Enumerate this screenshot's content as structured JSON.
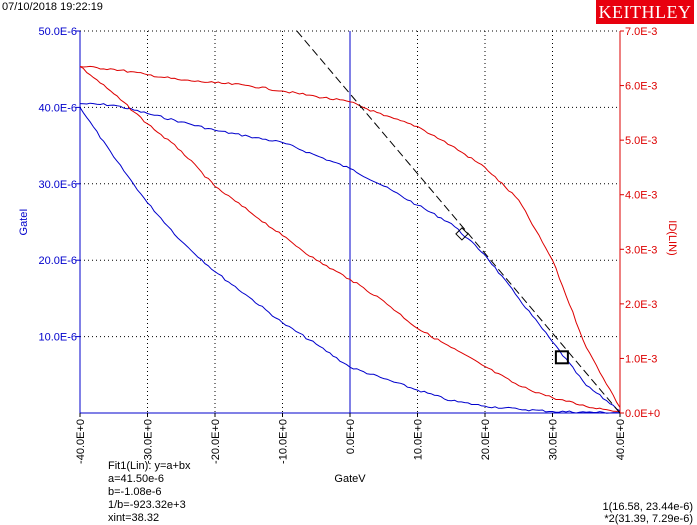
{
  "header": {
    "timestamp": "07/10/2018 19:22:19",
    "brand": "KEITHLEY"
  },
  "colors": {
    "left_axis": "#0000cc",
    "right_axis": "#dd0000",
    "fit_line": "#000000"
  },
  "fit": {
    "title": "Fit1(Lin):  y=a+bx",
    "a": "a=41.50e-6",
    "b": "b=-1.08e-6",
    "inv_b": "1/b=-923.32e+3",
    "xint": "xint=38.32"
  },
  "cursors": {
    "c1": "1(16.58, 23.44e-6)",
    "c2": "*2(31.39, 7.29e-6)"
  },
  "chart_data": {
    "type": "line",
    "xlabel": "GateV",
    "ylabel": "GateI",
    "y2label": "ID(LIN)",
    "xlim": [
      -40,
      40
    ],
    "ylim": [
      0,
      5e-05
    ],
    "y2lim": [
      0,
      0.007
    ],
    "grid": true,
    "x_ticks": [
      "-40.0E+0",
      "-30.0E+0",
      "-20.0E+0",
      "-10.0E+0",
      "0.0E+0",
      "10.0E+0",
      "20.0E+0",
      "30.0E+0",
      "40.0E+0"
    ],
    "x_tick_values": [
      -40,
      -30,
      -20,
      -10,
      0,
      10,
      20,
      30,
      40
    ],
    "y_ticks": [
      "10.0E-6",
      "20.0E-6",
      "30.0E-6",
      "40.0E-6",
      "50.0E-6"
    ],
    "y_tick_values": [
      1e-05,
      2e-05,
      3e-05,
      4e-05,
      5e-05
    ],
    "y2_ticks": [
      "0.0E+0",
      "1.0E-3",
      "2.0E-3",
      "3.0E-3",
      "4.0E-3",
      "5.0E-3",
      "6.0E-3",
      "7.0E-3"
    ],
    "y2_tick_values": [
      0,
      0.001,
      0.002,
      0.003,
      0.004,
      0.005,
      0.006,
      0.007
    ],
    "series": [
      {
        "axis": "left",
        "color": "#0000cc",
        "x": [
          -40,
          -35,
          -30,
          -25,
          -20,
          -15,
          -10,
          -5,
          0,
          5,
          10,
          15,
          20,
          25,
          30,
          35,
          40
        ],
        "y": [
          4.05e-05,
          4.03e-05,
          3.92e-05,
          3.81e-05,
          3.7e-05,
          3.62e-05,
          3.54e-05,
          3.37e-05,
          3.2e-05,
          2.97e-05,
          2.72e-05,
          2.48e-05,
          2.07e-05,
          1.5e-05,
          9.3e-06,
          3.6e-06,
          3e-07
        ]
      },
      {
        "axis": "left",
        "color": "#0000cc",
        "x": [
          -40,
          -35,
          -30,
          -25,
          -20,
          -15,
          -10,
          -5,
          0,
          5,
          10,
          15,
          20,
          25,
          30,
          35,
          40
        ],
        "y": [
          4e-05,
          3.35e-05,
          2.75e-05,
          2.25e-05,
          1.85e-05,
          1.52e-05,
          1.18e-05,
          9e-06,
          6e-06,
          4.5e-06,
          3e-06,
          1.6e-06,
          9e-07,
          5e-07,
          2e-07,
          1e-07,
          5e-08
        ]
      },
      {
        "axis": "right",
        "color": "#dd0000",
        "x": [
          -40,
          -35,
          -30,
          -25,
          -20,
          -15,
          -10,
          -5,
          0,
          5,
          10,
          15,
          20,
          25,
          30,
          35,
          40
        ],
        "y": [
          0.00635,
          0.0063,
          0.0062,
          0.0061,
          0.00605,
          0.006,
          0.0059,
          0.0058,
          0.0057,
          0.00545,
          0.00525,
          0.0049,
          0.0045,
          0.0039,
          0.0028,
          0.0012,
          0.0001
        ]
      },
      {
        "axis": "right",
        "color": "#dd0000",
        "x": [
          -40,
          -35,
          -30,
          -25,
          -20,
          -15,
          -10,
          -5,
          0,
          5,
          10,
          15,
          20,
          25,
          30,
          35,
          40
        ],
        "y": [
          0.00635,
          0.00585,
          0.0053,
          0.0048,
          0.00415,
          0.0037,
          0.00325,
          0.0028,
          0.00245,
          0.00205,
          0.00155,
          0.0012,
          0.00085,
          0.0005,
          0.00028,
          0.00012,
          3e-05
        ]
      }
    ],
    "fit_line": {
      "a": 4.15e-05,
      "b": -1.08e-06
    },
    "markers": [
      {
        "name": "cursor-1-marker",
        "shape": "diamond",
        "x": 16.58,
        "y": 2.344e-05
      },
      {
        "name": "cursor-2-marker",
        "shape": "square",
        "x": 31.39,
        "y": 7.29e-06
      }
    ]
  }
}
